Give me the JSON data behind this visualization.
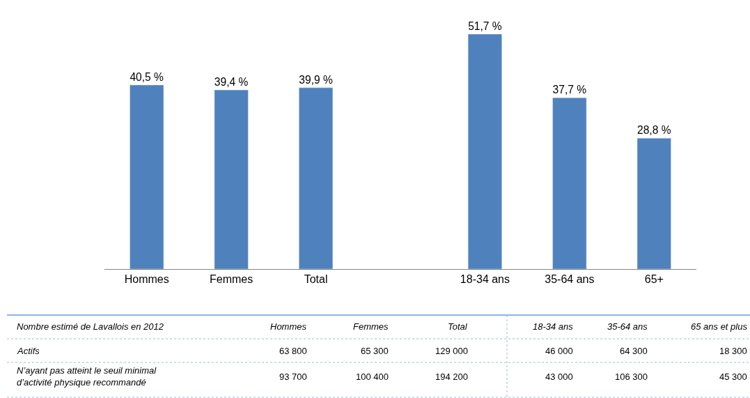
{
  "chart_data": {
    "type": "bar",
    "categories": [
      "Hommes",
      "Femmes",
      "Total",
      null,
      "18-34 ans",
      "35-64 ans",
      "65+"
    ],
    "values": [
      40.5,
      39.4,
      39.9,
      null,
      51.7,
      37.7,
      28.8
    ],
    "value_labels": [
      "40,5 %",
      "39,4 %",
      "39,9 %",
      null,
      "51,7 %",
      "37,7 %",
      "28,8 %"
    ],
    "color": "#4f81bd",
    "annotations": [
      "Nombre estimé de Lavallois en 2012",
      "Hommes",
      "Femmes",
      "Total",
      "18-34 ans",
      "35-64 ans",
      "65 ans et plus",
      "Actifs",
      "63 800",
      "65 300",
      "129 000",
      "46 000",
      "64 300",
      "18 300",
      "N’ayant pas atteint le seuil minimal\nd’activité physique recommandé",
      "93 700",
      "100 400",
      "194 200",
      "43 000",
      "106 300",
      "45 300"
    ]
  }
}
